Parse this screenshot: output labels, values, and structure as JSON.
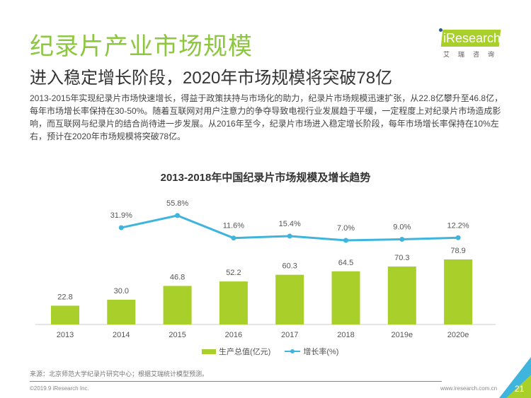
{
  "header": {
    "title": "纪录片产业市场规模",
    "subtitle": "进入稳定增长阶段，2020年市场规模将突破78亿",
    "description": "2013-2015年实现纪录片市场快速增长，得益于政策扶持与市场化的助力，纪录片市场规模迅速扩张，从22.8亿攀升至46.8亿，每年市场增长率保持在30-50%。随着互联网对用户注意力的争夺导致电视行业发展趋于平缓，一定程度上对纪录片市场造成影响，而互联网与纪录片的结合尚待进一步发展。从2016年至今，纪录片市场进入稳定增长阶段，每年市场增长率保持在10%左右，预计在2020年市场规模将突破78亿。"
  },
  "logo": {
    "text": "iResearch",
    "cn": "艾瑞咨询"
  },
  "chart_data": {
    "type": "bar+line",
    "title": "2013-2018年中国纪录片市场规模及增长趋势",
    "categories": [
      "2013",
      "2014",
      "2015",
      "2016",
      "2017",
      "2018",
      "2019e",
      "2020e"
    ],
    "series": [
      {
        "name": "生产总值(亿元)",
        "type": "bar",
        "color": "#a8cf2a",
        "values": [
          22.8,
          30.0,
          46.8,
          52.2,
          60.3,
          64.5,
          70.3,
          78.9
        ],
        "labels": [
          "22.8",
          "30.0",
          "46.8",
          "52.2",
          "60.3",
          "64.5",
          "70.3",
          "78.9"
        ]
      },
      {
        "name": "增长率(%)",
        "type": "line",
        "color": "#3fb4dd",
        "values": [
          null,
          31.9,
          55.8,
          11.6,
          15.4,
          7.0,
          9.0,
          12.2
        ],
        "labels": [
          "",
          "31.9%",
          "55.8%",
          "11.6%",
          "15.4%",
          "7.0%",
          "9.0%",
          "12.2%"
        ]
      }
    ],
    "legend": "bottom",
    "grid": false
  },
  "footer": {
    "source": "来源：北京师范大学纪录片研究中心；根据艾瑞统计模型预测。",
    "copyright": "©2019.9 iResearch Inc.",
    "url": "www.iresearch.com.cn",
    "page": "21"
  }
}
